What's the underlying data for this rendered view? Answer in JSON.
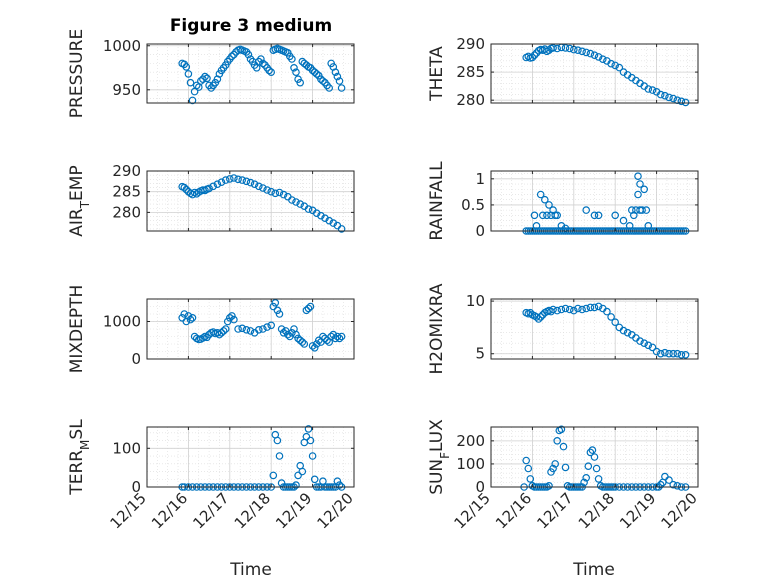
{
  "figure": {
    "title": "Figure 3 medium",
    "xlabel": "Time",
    "xticks": [
      "12/15",
      "12/16",
      "12/17",
      "12/18",
      "12/19",
      "12/20"
    ],
    "marker_color": "#0072BD"
  },
  "chart_data": [
    {
      "type": "scatter",
      "ylabel": "PRESSURE",
      "ylabel_main": "PRESSURE",
      "ylabel_sub": "",
      "ylabel_tail": "",
      "ylim": [
        935,
        1002
      ],
      "yticks": [
        950,
        1000
      ],
      "xlim": [
        15,
        20
      ],
      "x": [
        15.85,
        15.9,
        15.95,
        16.0,
        16.05,
        16.1,
        16.15,
        16.2,
        16.25,
        16.3,
        16.35,
        16.4,
        16.45,
        16.5,
        16.55,
        16.6,
        16.65,
        16.7,
        16.75,
        16.8,
        16.85,
        16.9,
        16.95,
        17.0,
        17.05,
        17.1,
        17.15,
        17.2,
        17.25,
        17.3,
        17.35,
        17.4,
        17.45,
        17.5,
        17.55,
        17.6,
        17.65,
        17.7,
        17.75,
        17.8,
        17.85,
        17.9,
        17.95,
        18.0,
        18.05,
        18.1,
        18.15,
        18.2,
        18.25,
        18.3,
        18.35,
        18.4,
        18.45,
        18.5,
        18.55,
        18.6,
        18.65,
        18.7,
        18.75,
        18.8,
        18.85,
        18.9,
        18.95,
        19.0,
        19.05,
        19.1,
        19.15,
        19.2,
        19.25,
        19.3,
        19.35,
        19.4,
        19.45,
        19.5,
        19.55,
        19.6,
        19.65,
        19.7
      ],
      "y": [
        980,
        979,
        976,
        968,
        958,
        938,
        948,
        955,
        953,
        960,
        962,
        965,
        963,
        955,
        952,
        955,
        958,
        962,
        968,
        972,
        975,
        978,
        982,
        985,
        988,
        990,
        993,
        995,
        996,
        995,
        994,
        993,
        990,
        985,
        982,
        978,
        975,
        982,
        985,
        980,
        978,
        975,
        972,
        970,
        995,
        996,
        997,
        996,
        995,
        994,
        993,
        992,
        988,
        985,
        975,
        970,
        962,
        958,
        982,
        980,
        978,
        976,
        975,
        972,
        970,
        968,
        966,
        962,
        960,
        958,
        955,
        952,
        980,
        976,
        970,
        965,
        960,
        952
      ]
    },
    {
      "type": "scatter",
      "ylabel": "THETA",
      "ylabel_main": "THETA",
      "ylabel_sub": "",
      "ylabel_tail": "",
      "ylim": [
        279.5,
        290
      ],
      "yticks": [
        280,
        285,
        290
      ],
      "xlim": [
        15,
        20
      ],
      "x": [
        15.85,
        15.9,
        15.95,
        16.0,
        16.05,
        16.1,
        16.15,
        16.2,
        16.25,
        16.3,
        16.35,
        16.4,
        16.45,
        16.5,
        16.6,
        16.7,
        16.8,
        16.9,
        17.0,
        17.1,
        17.2,
        17.3,
        17.4,
        17.5,
        17.6,
        17.7,
        17.8,
        17.9,
        18.0,
        18.1,
        18.2,
        18.3,
        18.4,
        18.5,
        18.6,
        18.7,
        18.8,
        18.9,
        19.0,
        19.1,
        19.2,
        19.3,
        19.4,
        19.5,
        19.6,
        19.7
      ],
      "y": [
        287.6,
        287.8,
        287.5,
        287.6,
        288.0,
        288.4,
        288.8,
        289.0,
        288.9,
        289.1,
        288.7,
        288.9,
        289.2,
        289.3,
        289.2,
        289.4,
        289.3,
        289.2,
        289.0,
        288.9,
        288.7,
        288.5,
        288.3,
        288.0,
        287.7,
        287.3,
        287.0,
        286.5,
        286.2,
        285.8,
        285.0,
        284.5,
        284.0,
        283.5,
        283.0,
        282.5,
        282.0,
        281.8,
        281.5,
        281.0,
        280.8,
        280.5,
        280.3,
        280.0,
        279.8,
        279.6
      ]
    },
    {
      "type": "scatter",
      "ylabel": "AIR_TEMP",
      "ylabel_main": "AIR",
      "ylabel_sub": "T",
      "ylabel_tail": "EMP",
      "ylim": [
        275.5,
        290
      ],
      "yticks": [
        280,
        285,
        290
      ],
      "xlim": [
        15,
        20
      ],
      "x": [
        15.85,
        15.9,
        15.95,
        16.0,
        16.05,
        16.1,
        16.15,
        16.2,
        16.25,
        16.3,
        16.35,
        16.4,
        16.45,
        16.5,
        16.6,
        16.7,
        16.8,
        16.9,
        17.0,
        17.1,
        17.2,
        17.3,
        17.4,
        17.5,
        17.6,
        17.7,
        17.8,
        17.9,
        18.0,
        18.1,
        18.2,
        18.3,
        18.4,
        18.5,
        18.6,
        18.7,
        18.8,
        18.9,
        19.0,
        19.1,
        19.2,
        19.3,
        19.4,
        19.5,
        19.6,
        19.7
      ],
      "y": [
        286.2,
        286.0,
        285.5,
        285.0,
        284.6,
        284.3,
        284.8,
        284.5,
        284.9,
        285.2,
        285.4,
        285.3,
        285.6,
        285.8,
        286.3,
        286.8,
        287.3,
        287.8,
        288.1,
        288.3,
        288.0,
        287.8,
        287.5,
        287.2,
        286.8,
        286.3,
        285.9,
        285.4,
        285.0,
        284.6,
        284.8,
        284.3,
        283.8,
        283.0,
        282.5,
        282.0,
        281.5,
        280.8,
        280.5,
        279.8,
        279.2,
        278.6,
        278.0,
        277.4,
        276.8,
        276.0
      ]
    },
    {
      "type": "scatter",
      "ylabel": "RAINFALL",
      "ylabel_main": "RAINFALL",
      "ylabel_sub": "",
      "ylabel_tail": "",
      "ylim": [
        0,
        1.15
      ],
      "yticks": [
        0,
        0.5,
        1
      ],
      "ytick_labels": [
        "0",
        "0.5",
        "1"
      ],
      "xlim": [
        15,
        20
      ],
      "x": [
        15.85,
        15.9,
        15.95,
        16.0,
        16.05,
        16.1,
        16.15,
        16.2,
        16.25,
        16.3,
        16.35,
        16.4,
        16.45,
        16.5,
        16.55,
        16.6,
        16.65,
        16.7,
        16.75,
        16.8,
        16.85,
        16.9,
        16.95,
        17.0,
        17.05,
        17.1,
        17.15,
        17.2,
        17.25,
        17.3,
        17.35,
        17.4,
        17.45,
        17.5,
        17.55,
        17.6,
        17.65,
        17.7,
        17.75,
        17.8,
        17.85,
        17.9,
        17.95,
        18.0,
        18.05,
        18.1,
        18.15,
        18.2,
        18.25,
        18.3,
        18.35,
        18.4,
        18.45,
        18.5,
        18.55,
        18.6,
        18.65,
        18.7,
        18.75,
        18.8,
        18.85,
        18.9,
        18.95,
        19.0,
        19.05,
        19.1,
        19.15,
        19.2,
        19.25,
        19.3,
        19.35,
        19.4,
        19.45,
        19.5,
        19.55,
        19.6,
        19.65,
        19.7,
        16.05,
        16.1,
        16.2,
        16.25,
        16.3,
        16.35,
        16.4,
        16.45,
        16.5,
        16.55,
        16.6,
        16.7,
        16.8,
        17.3,
        17.5,
        17.6,
        18.0,
        18.2,
        18.35,
        18.4,
        18.45,
        18.5,
        18.55,
        18.55,
        18.6,
        18.6,
        18.65,
        18.7,
        18.75,
        18.8
      ],
      "y": [
        0,
        0,
        0,
        0,
        0,
        0,
        0,
        0,
        0,
        0,
        0,
        0,
        0,
        0,
        0,
        0,
        0,
        0,
        0,
        0,
        0,
        0,
        0,
        0,
        0,
        0,
        0,
        0,
        0,
        0,
        0,
        0,
        0,
        0,
        0,
        0,
        0,
        0,
        0,
        0,
        0,
        0,
        0,
        0,
        0,
        0,
        0,
        0,
        0,
        0,
        0,
        0,
        0,
        0,
        0,
        0,
        0,
        0,
        0,
        0,
        0,
        0,
        0,
        0,
        0,
        0,
        0,
        0,
        0,
        0,
        0,
        0,
        0,
        0,
        0,
        0,
        0,
        0,
        0.3,
        0.1,
        0.7,
        0.3,
        0.6,
        0.3,
        0.5,
        0.3,
        0.4,
        0.3,
        0.3,
        0.1,
        0.05,
        0.4,
        0.3,
        0.3,
        0.3,
        0.2,
        0.1,
        0.4,
        0.3,
        0.4,
        0.7,
        1.05,
        0.4,
        0.9,
        0.4,
        0.8,
        0.4,
        0.1
      ]
    },
    {
      "type": "scatter",
      "ylabel": "MIXDEPTH",
      "ylabel_main": "MIXDEPTH",
      "ylabel_sub": "",
      "ylabel_tail": "",
      "ylim": [
        0,
        1600
      ],
      "yticks": [
        0,
        1000
      ],
      "xlim": [
        15,
        20
      ],
      "x": [
        15.85,
        15.9,
        15.95,
        16.0,
        16.05,
        16.1,
        16.15,
        16.2,
        16.25,
        16.3,
        16.35,
        16.4,
        16.45,
        16.5,
        16.55,
        16.6,
        16.65,
        16.7,
        16.75,
        16.8,
        16.85,
        16.9,
        16.95,
        17.0,
        17.05,
        17.1,
        17.2,
        17.3,
        17.4,
        17.5,
        17.6,
        17.7,
        17.8,
        17.9,
        18.0,
        18.05,
        18.1,
        18.15,
        18.2,
        18.25,
        18.3,
        18.35,
        18.4,
        18.45,
        18.5,
        18.55,
        18.6,
        18.65,
        18.7,
        18.75,
        18.8,
        18.85,
        18.9,
        18.95,
        19.0,
        19.05,
        19.1,
        19.15,
        19.2,
        19.25,
        19.3,
        19.35,
        19.4,
        19.45,
        19.5,
        19.55,
        19.6,
        19.65,
        19.7
      ],
      "y": [
        1100,
        1200,
        1000,
        1150,
        1050,
        1100,
        600,
        550,
        520,
        530,
        560,
        600,
        580,
        650,
        700,
        720,
        680,
        700,
        650,
        700,
        750,
        800,
        1000,
        1100,
        1150,
        1050,
        800,
        820,
        780,
        750,
        700,
        780,
        800,
        850,
        900,
        1400,
        1500,
        1300,
        1200,
        800,
        700,
        750,
        650,
        600,
        700,
        800,
        650,
        550,
        500,
        450,
        400,
        1300,
        1350,
        1400,
        350,
        300,
        400,
        500,
        450,
        600,
        550,
        500,
        450,
        600,
        650,
        550,
        600,
        550,
        600
      ]
    },
    {
      "type": "scatter",
      "ylabel": "H2OMIXRA",
      "ylabel_main": "H2OMIXRA",
      "ylabel_sub": "",
      "ylabel_tail": "",
      "ylim": [
        4.5,
        10.2
      ],
      "yticks": [
        5,
        10
      ],
      "xlim": [
        15,
        20
      ],
      "x": [
        15.85,
        15.9,
        15.95,
        16.0,
        16.05,
        16.1,
        16.15,
        16.2,
        16.25,
        16.3,
        16.35,
        16.4,
        16.45,
        16.5,
        16.6,
        16.7,
        16.8,
        16.9,
        17.0,
        17.1,
        17.2,
        17.3,
        17.4,
        17.5,
        17.6,
        17.7,
        17.8,
        17.9,
        18.0,
        18.1,
        18.2,
        18.3,
        18.4,
        18.5,
        18.6,
        18.7,
        18.8,
        18.9,
        19.0,
        19.1,
        19.2,
        19.3,
        19.4,
        19.5,
        19.6,
        19.7
      ],
      "y": [
        8.9,
        8.8,
        8.9,
        8.7,
        8.6,
        8.5,
        8.3,
        8.5,
        8.7,
        8.9,
        9.0,
        9.1,
        9.0,
        9.2,
        9.1,
        9.2,
        9.3,
        9.2,
        9.1,
        9.3,
        9.2,
        9.3,
        9.4,
        9.4,
        9.5,
        9.3,
        9.0,
        8.5,
        8.0,
        7.5,
        7.2,
        7.0,
        6.8,
        6.5,
        6.2,
        6.0,
        5.8,
        5.6,
        5.2,
        5.0,
        5.1,
        5.0,
        5.0,
        5.0,
        4.9,
        4.9
      ]
    },
    {
      "type": "scatter",
      "ylabel": "TERR_MSL",
      "ylabel_main": "TERR",
      "ylabel_sub": "M",
      "ylabel_tail": "SL",
      "ylim": [
        0,
        155
      ],
      "yticks": [
        0,
        100
      ],
      "xlim": [
        15,
        20
      ],
      "x": [
        15.85,
        15.9,
        16.0,
        16.1,
        16.2,
        16.3,
        16.4,
        16.5,
        16.6,
        16.7,
        16.8,
        16.9,
        17.0,
        17.1,
        17.2,
        17.3,
        17.4,
        17.5,
        17.6,
        17.7,
        17.8,
        17.9,
        18.0,
        18.05,
        18.1,
        18.15,
        18.2,
        18.25,
        18.3,
        18.35,
        18.4,
        18.45,
        18.5,
        18.55,
        18.6,
        18.65,
        18.7,
        18.75,
        18.8,
        18.85,
        18.9,
        18.95,
        19.0,
        19.05,
        19.1,
        19.15,
        19.2,
        19.25,
        19.3,
        19.35,
        19.4,
        19.45,
        19.5,
        19.55,
        19.6,
        19.65,
        19.7
      ],
      "y": [
        0,
        0,
        0,
        0,
        0,
        0,
        0,
        0,
        0,
        0,
        0,
        0,
        0,
        0,
        0,
        0,
        0,
        0,
        0,
        0,
        0,
        0,
        0,
        30,
        135,
        120,
        80,
        10,
        0,
        0,
        0,
        0,
        0,
        0,
        5,
        30,
        55,
        40,
        115,
        130,
        150,
        120,
        80,
        20,
        0,
        0,
        0,
        15,
        0,
        0,
        0,
        0,
        0,
        0,
        15,
        5,
        0
      ]
    },
    {
      "type": "scatter",
      "ylabel": "SUN_FLUX",
      "ylabel_main": "SUN",
      "ylabel_sub": "F",
      "ylabel_tail": "LUX",
      "ylim": [
        0,
        260
      ],
      "yticks": [
        0,
        100,
        200
      ],
      "xlim": [
        15,
        20
      ],
      "x": [
        15.8,
        15.85,
        15.9,
        15.95,
        16.0,
        16.05,
        16.1,
        16.15,
        16.2,
        16.25,
        16.3,
        16.35,
        16.4,
        16.45,
        16.5,
        16.55,
        16.6,
        16.65,
        16.7,
        16.75,
        16.8,
        16.85,
        16.9,
        16.95,
        17.0,
        17.05,
        17.1,
        17.15,
        17.2,
        17.25,
        17.3,
        17.35,
        17.4,
        17.45,
        17.5,
        17.55,
        17.6,
        17.65,
        17.7,
        17.75,
        17.8,
        17.85,
        17.9,
        17.95,
        18.0,
        18.1,
        18.2,
        18.3,
        18.4,
        18.5,
        18.6,
        18.7,
        18.8,
        18.9,
        19.0,
        19.05,
        19.1,
        19.15,
        19.2,
        19.3,
        19.4,
        19.5,
        19.6,
        19.7
      ],
      "y": [
        0,
        115,
        80,
        35,
        5,
        0,
        0,
        0,
        0,
        0,
        0,
        0,
        5,
        65,
        80,
        100,
        200,
        245,
        250,
        175,
        85,
        5,
        0,
        0,
        0,
        0,
        0,
        0,
        0,
        20,
        40,
        90,
        150,
        160,
        130,
        80,
        35,
        5,
        0,
        0,
        0,
        0,
        0,
        0,
        0,
        0,
        0,
        0,
        0,
        0,
        0,
        0,
        0,
        0,
        0,
        0,
        10,
        20,
        45,
        30,
        10,
        5,
        0,
        0
      ]
    }
  ]
}
